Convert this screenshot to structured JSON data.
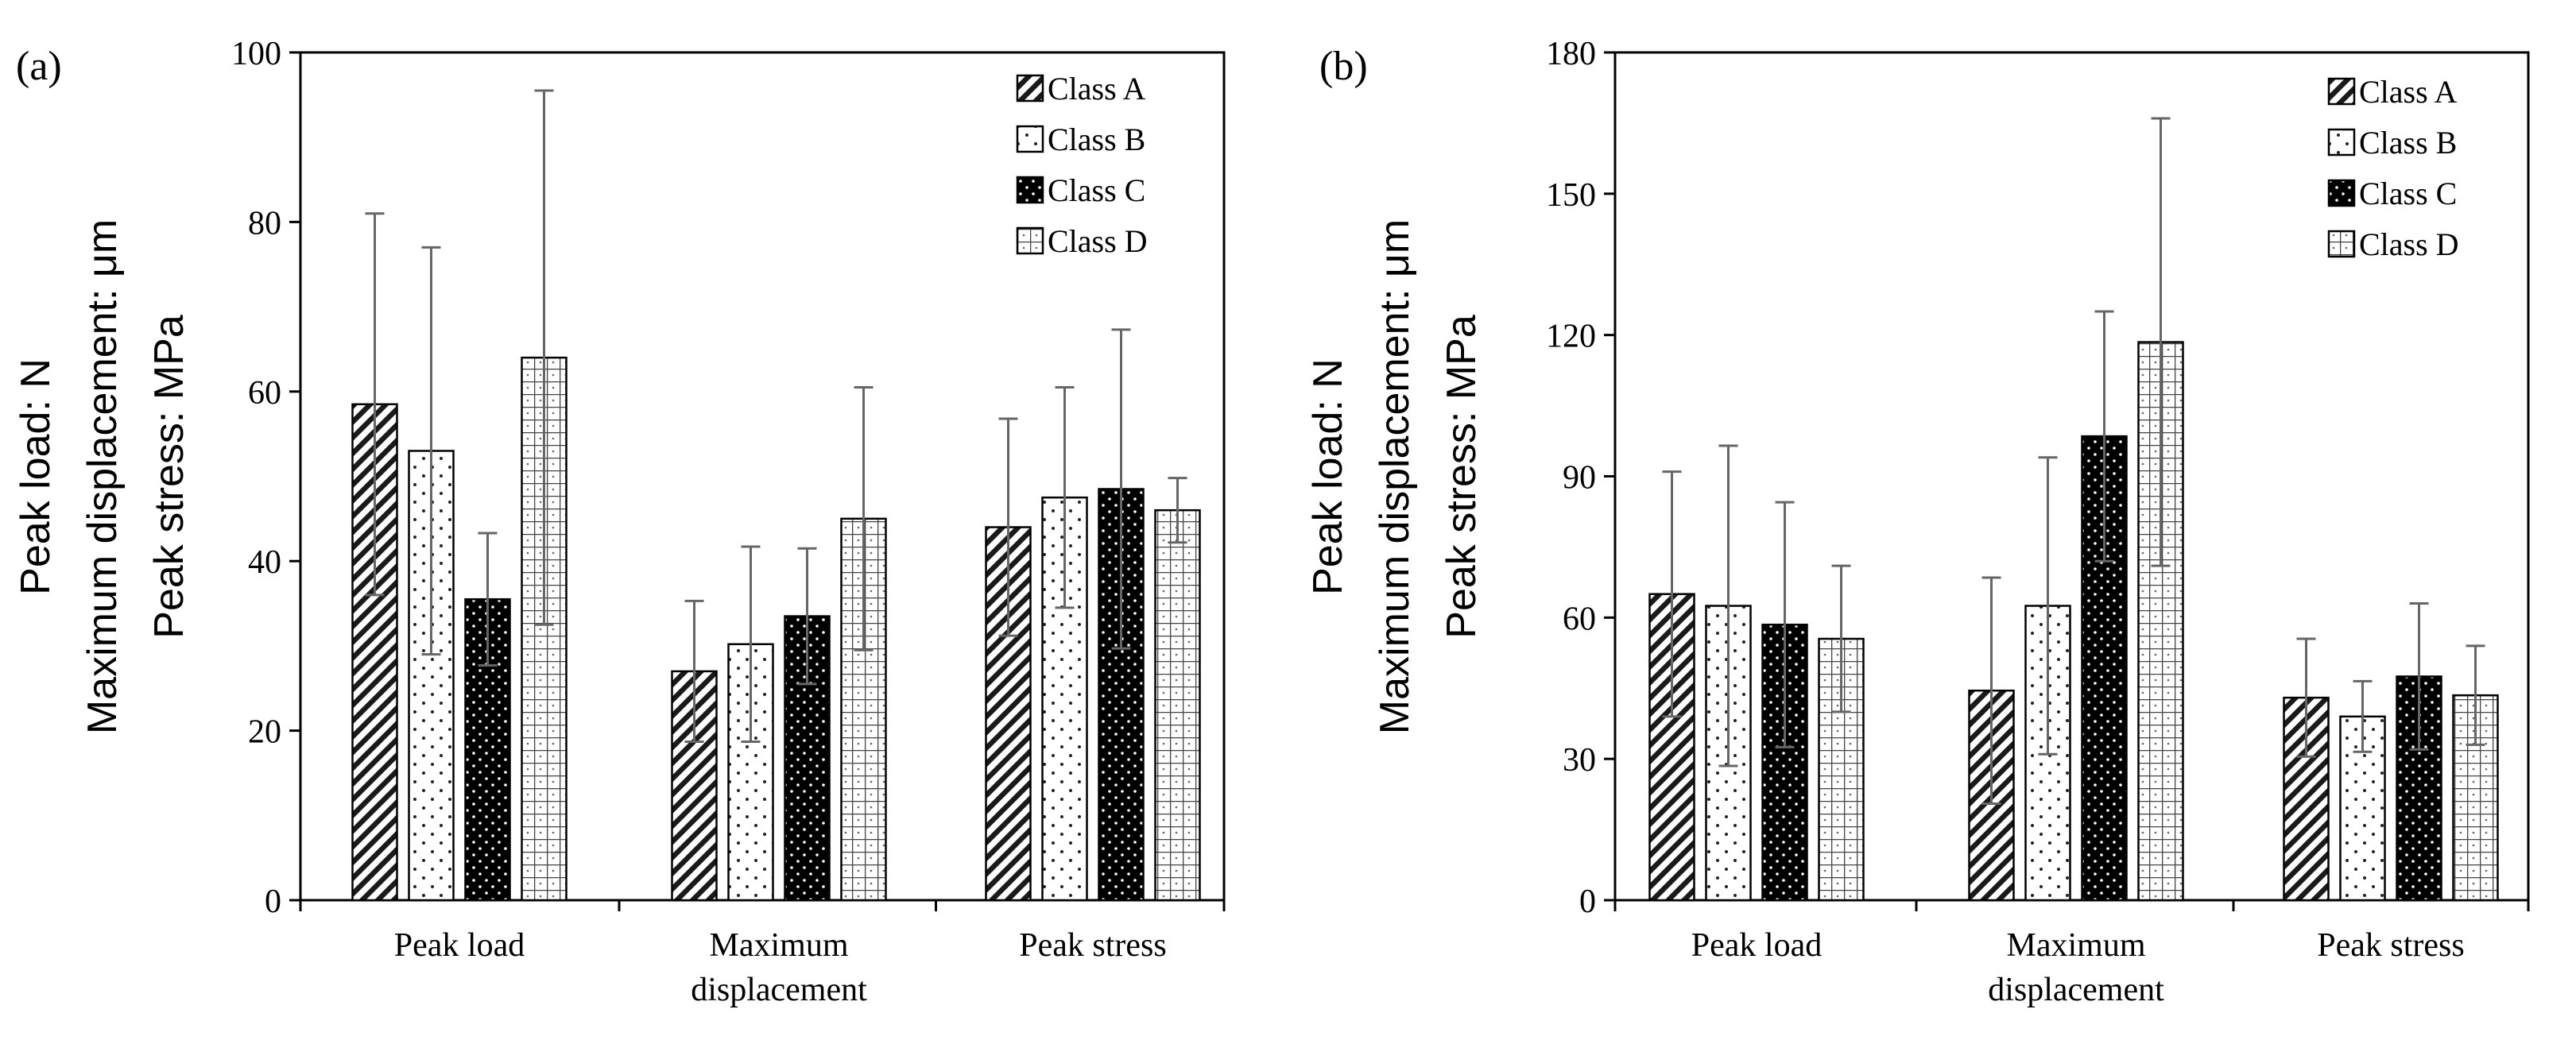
{
  "chart_data": [
    {
      "type": "bar",
      "panel_label": "(a)",
      "categories": [
        "Peak load",
        "Maximum displacement",
        "Peak stress"
      ],
      "category_lines": [
        [
          "Peak load"
        ],
        [
          "Maximum",
          "displacement"
        ],
        [
          "Peak stress"
        ]
      ],
      "ylabel_lines": [
        "Peak load: N",
        "Maximum displacement: μm",
        "Peak stress: MPa"
      ],
      "ylim": [
        0,
        100
      ],
      "yticks": [
        0,
        20,
        40,
        60,
        80,
        100
      ],
      "legend_position": "top-right",
      "series": [
        {
          "name": "Class A",
          "pattern": "diag",
          "values": [
            58.5,
            27.0,
            44.0
          ],
          "errors": [
            22.5,
            8.3,
            12.8
          ]
        },
        {
          "name": "Class B",
          "pattern": "sparse-dots",
          "values": [
            53.0,
            30.2,
            47.5
          ],
          "errors": [
            24.0,
            11.5,
            13.0
          ]
        },
        {
          "name": "Class C",
          "pattern": "black-dots",
          "values": [
            35.5,
            33.5,
            48.5
          ],
          "errors": [
            7.8,
            8.0,
            18.8
          ]
        },
        {
          "name": "Class D",
          "pattern": "grid",
          "values": [
            64.0,
            45.0,
            46.0
          ],
          "errors": [
            31.5,
            15.5,
            3.8
          ]
        }
      ]
    },
    {
      "type": "bar",
      "panel_label": "(b)",
      "categories": [
        "Peak load",
        "Maximum displacement",
        "Peak stress"
      ],
      "category_lines": [
        [
          "Peak load"
        ],
        [
          "Maximum",
          "displacement"
        ],
        [
          "Peak stress"
        ]
      ],
      "ylabel_lines": [
        "Peak load: N",
        "Maximum displacement: μm",
        "Peak stress: MPa"
      ],
      "ylim": [
        0,
        180
      ],
      "yticks": [
        0,
        30,
        60,
        90,
        120,
        150,
        180
      ],
      "legend_position": "top-right",
      "series": [
        {
          "name": "Class A",
          "pattern": "diag",
          "values": [
            65.0,
            44.5,
            43.0
          ],
          "errors": [
            26.0,
            24.0,
            12.5
          ]
        },
        {
          "name": "Class B",
          "pattern": "sparse-dots",
          "values": [
            62.5,
            62.5,
            39.0
          ],
          "errors": [
            34.0,
            31.5,
            7.5
          ]
        },
        {
          "name": "Class C",
          "pattern": "black-dots",
          "values": [
            58.5,
            98.5,
            47.5
          ],
          "errors": [
            26.0,
            26.5,
            15.5
          ]
        },
        {
          "name": "Class D",
          "pattern": "grid",
          "values": [
            55.5,
            118.5,
            43.5
          ],
          "errors": [
            15.5,
            47.5,
            10.5
          ]
        }
      ]
    }
  ]
}
